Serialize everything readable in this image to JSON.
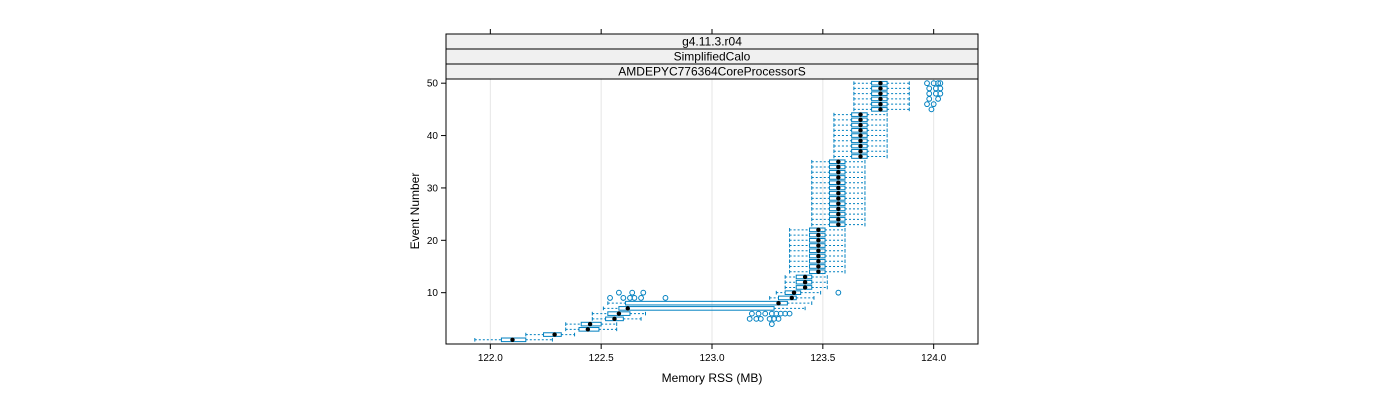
{
  "chart_data": {
    "type": "boxplot",
    "orientation": "horizontal",
    "strips": [
      "g4.11.3.r04",
      "SimplifiedCalo",
      "AMDEPYC776364CoreProcessorS"
    ],
    "xlabel": "Memory RSS (MB)",
    "ylabel": "Event Number",
    "xlim": [
      121.8,
      124.2
    ],
    "ylim": [
      0.2,
      50.8
    ],
    "x_ticks": [
      122.0,
      122.5,
      123.0,
      123.5,
      124.0
    ],
    "x_tick_labels": [
      "122.0",
      "122.5",
      "123.0",
      "123.5",
      "124.0"
    ],
    "y_ticks": [
      10,
      20,
      30,
      40,
      50
    ],
    "y_tick_labels": [
      "10",
      "20",
      "30",
      "40",
      "50"
    ],
    "grid": "vertical",
    "colors": {
      "box": "#0080c0",
      "median": "#000000",
      "strip": "#f0f0f0",
      "grid": "#e6e6e6"
    },
    "events": [
      {
        "event": 1,
        "q1": 122.05,
        "median": 122.1,
        "q3": 122.16,
        "wlow": 121.93,
        "whigh": 122.28,
        "outliers": []
      },
      {
        "event": 2,
        "q1": 122.24,
        "median": 122.29,
        "q3": 122.32,
        "wlow": 122.16,
        "whigh": 122.38,
        "outliers": []
      },
      {
        "event": 3,
        "q1": 122.4,
        "median": 122.44,
        "q3": 122.49,
        "wlow": 122.34,
        "whigh": 122.57,
        "outliers": []
      },
      {
        "event": 4,
        "q1": 122.41,
        "median": 122.45,
        "q3": 122.5,
        "wlow": 122.34,
        "whigh": 122.57,
        "outliers": [
          123.27
        ]
      },
      {
        "event": 5,
        "q1": 122.52,
        "median": 122.56,
        "q3": 122.6,
        "wlow": 122.46,
        "whigh": 122.68,
        "outliers": [
          123.17,
          123.2,
          123.22,
          123.26,
          123.28,
          123.3
        ]
      },
      {
        "event": 6,
        "q1": 122.53,
        "median": 122.58,
        "q3": 122.63,
        "wlow": 122.46,
        "whigh": 122.7,
        "outliers": [
          123.18,
          123.21,
          123.24,
          123.27,
          123.29,
          123.31,
          123.33,
          123.35
        ]
      },
      {
        "event": 7,
        "q1": 122.58,
        "median": 122.62,
        "q3": 123.28,
        "wlow": 122.51,
        "whigh": 123.42,
        "outliers": []
      },
      {
        "event": 8,
        "q1": 122.61,
        "median": 123.3,
        "q3": 123.34,
        "wlow": 122.53,
        "whigh": 123.45,
        "outliers": []
      },
      {
        "event": 9,
        "q1": 123.3,
        "median": 123.36,
        "q3": 123.38,
        "wlow": 123.26,
        "whigh": 123.46,
        "outliers": [
          122.54,
          122.6,
          122.63,
          122.65,
          122.68,
          122.79
        ]
      },
      {
        "event": 10,
        "q1": 123.33,
        "median": 123.37,
        "q3": 123.4,
        "wlow": 123.29,
        "whigh": 123.49,
        "outliers": [
          122.58,
          122.64,
          122.69,
          123.57
        ]
      },
      {
        "event": 11,
        "q1": 123.38,
        "median": 123.42,
        "q3": 123.45,
        "wlow": 123.33,
        "whigh": 123.52,
        "outliers": []
      },
      {
        "event": 12,
        "q1": 123.38,
        "median": 123.42,
        "q3": 123.45,
        "wlow": 123.33,
        "whigh": 123.52,
        "outliers": []
      },
      {
        "event": 13,
        "q1": 123.38,
        "median": 123.42,
        "q3": 123.45,
        "wlow": 123.33,
        "whigh": 123.52,
        "outliers": []
      },
      {
        "event": 14,
        "q1": 123.44,
        "median": 123.48,
        "q3": 123.51,
        "wlow": 123.35,
        "whigh": 123.6,
        "outliers": []
      },
      {
        "event": 15,
        "q1": 123.44,
        "median": 123.48,
        "q3": 123.51,
        "wlow": 123.35,
        "whigh": 123.6,
        "outliers": []
      },
      {
        "event": 16,
        "q1": 123.44,
        "median": 123.48,
        "q3": 123.51,
        "wlow": 123.35,
        "whigh": 123.6,
        "outliers": []
      },
      {
        "event": 17,
        "q1": 123.44,
        "median": 123.48,
        "q3": 123.51,
        "wlow": 123.35,
        "whigh": 123.6,
        "outliers": []
      },
      {
        "event": 18,
        "q1": 123.44,
        "median": 123.48,
        "q3": 123.51,
        "wlow": 123.35,
        "whigh": 123.6,
        "outliers": []
      },
      {
        "event": 19,
        "q1": 123.44,
        "median": 123.48,
        "q3": 123.51,
        "wlow": 123.35,
        "whigh": 123.6,
        "outliers": []
      },
      {
        "event": 20,
        "q1": 123.44,
        "median": 123.48,
        "q3": 123.51,
        "wlow": 123.35,
        "whigh": 123.6,
        "outliers": []
      },
      {
        "event": 21,
        "q1": 123.44,
        "median": 123.48,
        "q3": 123.51,
        "wlow": 123.35,
        "whigh": 123.6,
        "outliers": []
      },
      {
        "event": 22,
        "q1": 123.44,
        "median": 123.48,
        "q3": 123.51,
        "wlow": 123.35,
        "whigh": 123.6,
        "outliers": []
      },
      {
        "event": 23,
        "q1": 123.53,
        "median": 123.57,
        "q3": 123.6,
        "wlow": 123.45,
        "whigh": 123.69,
        "outliers": []
      },
      {
        "event": 24,
        "q1": 123.53,
        "median": 123.57,
        "q3": 123.6,
        "wlow": 123.45,
        "whigh": 123.69,
        "outliers": []
      },
      {
        "event": 25,
        "q1": 123.53,
        "median": 123.57,
        "q3": 123.6,
        "wlow": 123.45,
        "whigh": 123.69,
        "outliers": []
      },
      {
        "event": 26,
        "q1": 123.53,
        "median": 123.57,
        "q3": 123.6,
        "wlow": 123.45,
        "whigh": 123.69,
        "outliers": []
      },
      {
        "event": 27,
        "q1": 123.53,
        "median": 123.57,
        "q3": 123.6,
        "wlow": 123.45,
        "whigh": 123.69,
        "outliers": []
      },
      {
        "event": 28,
        "q1": 123.53,
        "median": 123.57,
        "q3": 123.6,
        "wlow": 123.45,
        "whigh": 123.69,
        "outliers": []
      },
      {
        "event": 29,
        "q1": 123.53,
        "median": 123.57,
        "q3": 123.6,
        "wlow": 123.45,
        "whigh": 123.69,
        "outliers": []
      },
      {
        "event": 30,
        "q1": 123.53,
        "median": 123.57,
        "q3": 123.6,
        "wlow": 123.45,
        "whigh": 123.69,
        "outliers": []
      },
      {
        "event": 31,
        "q1": 123.53,
        "median": 123.57,
        "q3": 123.6,
        "wlow": 123.45,
        "whigh": 123.69,
        "outliers": []
      },
      {
        "event": 32,
        "q1": 123.53,
        "median": 123.57,
        "q3": 123.6,
        "wlow": 123.45,
        "whigh": 123.69,
        "outliers": []
      },
      {
        "event": 33,
        "q1": 123.53,
        "median": 123.57,
        "q3": 123.6,
        "wlow": 123.45,
        "whigh": 123.69,
        "outliers": []
      },
      {
        "event": 34,
        "q1": 123.53,
        "median": 123.57,
        "q3": 123.6,
        "wlow": 123.45,
        "whigh": 123.69,
        "outliers": []
      },
      {
        "event": 35,
        "q1": 123.53,
        "median": 123.57,
        "q3": 123.6,
        "wlow": 123.45,
        "whigh": 123.69,
        "outliers": []
      },
      {
        "event": 36,
        "q1": 123.63,
        "median": 123.67,
        "q3": 123.7,
        "wlow": 123.55,
        "whigh": 123.79,
        "outliers": []
      },
      {
        "event": 37,
        "q1": 123.63,
        "median": 123.67,
        "q3": 123.7,
        "wlow": 123.55,
        "whigh": 123.79,
        "outliers": []
      },
      {
        "event": 38,
        "q1": 123.63,
        "median": 123.67,
        "q3": 123.7,
        "wlow": 123.55,
        "whigh": 123.79,
        "outliers": []
      },
      {
        "event": 39,
        "q1": 123.63,
        "median": 123.67,
        "q3": 123.7,
        "wlow": 123.55,
        "whigh": 123.79,
        "outliers": []
      },
      {
        "event": 40,
        "q1": 123.63,
        "median": 123.67,
        "q3": 123.7,
        "wlow": 123.55,
        "whigh": 123.79,
        "outliers": []
      },
      {
        "event": 41,
        "q1": 123.63,
        "median": 123.67,
        "q3": 123.7,
        "wlow": 123.55,
        "whigh": 123.79,
        "outliers": []
      },
      {
        "event": 42,
        "q1": 123.63,
        "median": 123.67,
        "q3": 123.7,
        "wlow": 123.55,
        "whigh": 123.79,
        "outliers": []
      },
      {
        "event": 43,
        "q1": 123.63,
        "median": 123.67,
        "q3": 123.7,
        "wlow": 123.55,
        "whigh": 123.79,
        "outliers": []
      },
      {
        "event": 44,
        "q1": 123.63,
        "median": 123.67,
        "q3": 123.7,
        "wlow": 123.55,
        "whigh": 123.79,
        "outliers": []
      },
      {
        "event": 45,
        "q1": 123.72,
        "median": 123.76,
        "q3": 123.79,
        "wlow": 123.64,
        "whigh": 123.89,
        "outliers": [
          123.99
        ]
      },
      {
        "event": 46,
        "q1": 123.72,
        "median": 123.76,
        "q3": 123.79,
        "wlow": 123.64,
        "whigh": 123.89,
        "outliers": [
          123.97,
          124.0
        ]
      },
      {
        "event": 47,
        "q1": 123.72,
        "median": 123.76,
        "q3": 123.79,
        "wlow": 123.64,
        "whigh": 123.89,
        "outliers": [
          123.98,
          124.02
        ]
      },
      {
        "event": 48,
        "q1": 123.72,
        "median": 123.76,
        "q3": 123.79,
        "wlow": 123.64,
        "whigh": 123.89,
        "outliers": [
          123.98,
          124.01,
          124.03
        ]
      },
      {
        "event": 49,
        "q1": 123.72,
        "median": 123.76,
        "q3": 123.79,
        "wlow": 123.64,
        "whigh": 123.89,
        "outliers": [
          123.98,
          124.01,
          124.03
        ]
      },
      {
        "event": 50,
        "q1": 123.72,
        "median": 123.76,
        "q3": 123.79,
        "wlow": 123.64,
        "whigh": 123.89,
        "outliers": [
          123.97,
          124.0,
          124.02,
          124.03
        ]
      }
    ]
  }
}
